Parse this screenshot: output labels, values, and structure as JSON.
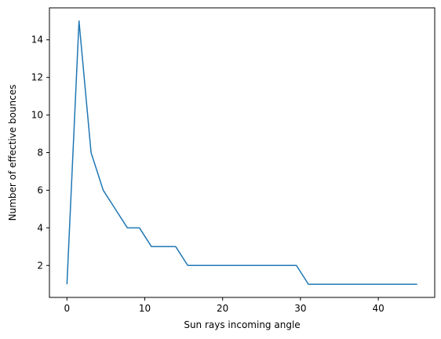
{
  "chart_data": {
    "type": "line",
    "title": "",
    "xlabel": "Sun rays incoming angle",
    "ylabel": "Number of effective bounces",
    "xlim": [
      -2.25,
      47.25
    ],
    "ylim": [
      0.3,
      15.7
    ],
    "xticks": [
      0,
      10,
      20,
      30,
      40
    ],
    "xtick_labels": [
      "0",
      "10",
      "20",
      "30",
      "40"
    ],
    "yticks": [
      2,
      4,
      6,
      8,
      10,
      12,
      14
    ],
    "ytick_labels": [
      "2",
      "4",
      "6",
      "8",
      "10",
      "12",
      "14"
    ],
    "grid": false,
    "legend": "none",
    "series": [
      {
        "color": "#1f77b4",
        "x": [
          0,
          1.55,
          3.1,
          4.66,
          6.21,
          7.76,
          9.31,
          10.86,
          12.41,
          13.97,
          15.52,
          17.07,
          18.62,
          20.17,
          21.72,
          23.28,
          24.83,
          26.38,
          27.93,
          29.48,
          31.03,
          32.59,
          34.14,
          35.69,
          37.24,
          38.79,
          40.34,
          41.9,
          43.45,
          45
        ],
        "y": [
          1,
          15,
          8,
          6,
          5,
          4,
          4,
          3,
          3,
          3,
          2,
          2,
          2,
          2,
          2,
          2,
          2,
          2,
          2,
          2,
          1,
          1,
          1,
          1,
          1,
          1,
          1,
          1,
          1,
          1
        ]
      }
    ]
  }
}
